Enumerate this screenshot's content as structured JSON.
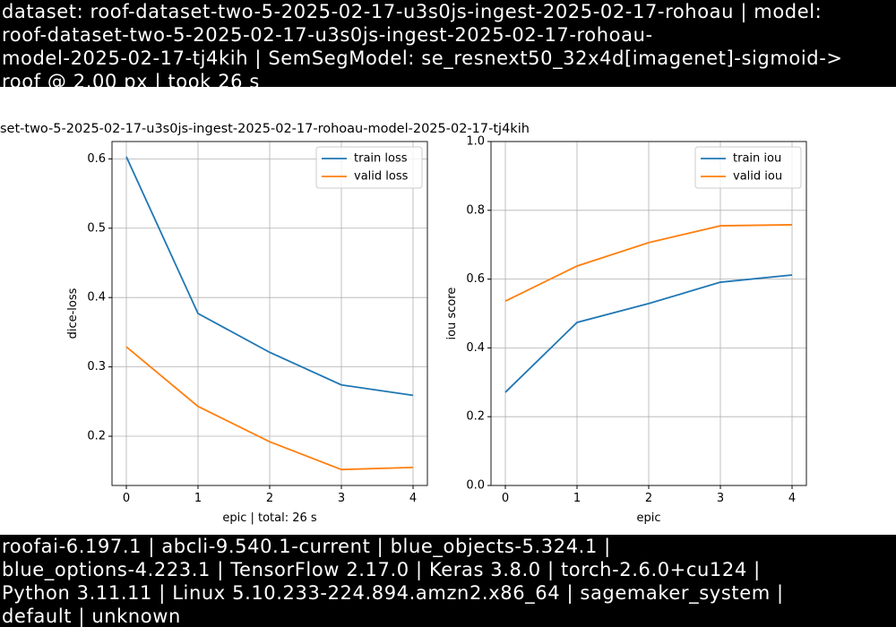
{
  "header": {
    "lines": [
      "dataset: roof-dataset-two-5-2025-02-17-u3s0js-ingest-2025-02-17-rohoau | model:",
      "roof-dataset-two-5-2025-02-17-u3s0js-ingest-2025-02-17-rohoau-",
      "model-2025-02-17-tj4kih | SemSegModel: se_resnext50_32x4d[imagenet]-sigmoid->",
      "roof @ 2.00 px | took 26 s"
    ]
  },
  "figure": {
    "title": "set-two-5-2025-02-17-u3s0js-ingest-2025-02-17-rohoau-model-2025-02-17-tj4kih"
  },
  "chart_data": [
    {
      "type": "line",
      "x": [
        0,
        1,
        2,
        3,
        4
      ],
      "xlim": [
        -0.2,
        4.2
      ],
      "xticks": [
        0,
        1,
        2,
        3,
        4
      ],
      "ylim": [
        0.129,
        0.625
      ],
      "yticks": [
        0.2,
        0.3,
        0.4,
        0.5,
        0.6
      ],
      "grid": true,
      "legend": "upper-right",
      "xlabel": "epic | total: 26 s",
      "ylabel": "dice-loss",
      "series": [
        {
          "name": "train loss",
          "color": "#1f77b4",
          "values": [
            0.603,
            0.377,
            0.321,
            0.274,
            0.259
          ]
        },
        {
          "name": "valid loss",
          "color": "#ff7f0e",
          "values": [
            0.329,
            0.243,
            0.192,
            0.152,
            0.155
          ]
        }
      ]
    },
    {
      "type": "line",
      "x": [
        0,
        1,
        2,
        3,
        4
      ],
      "xlim": [
        -0.2,
        4.2
      ],
      "xticks": [
        0,
        1,
        2,
        3,
        4
      ],
      "ylim": [
        0,
        1
      ],
      "yticks": [
        {
          "value": 0,
          "label": "0.0"
        },
        0.2,
        0.4,
        0.6,
        0.8,
        {
          "value": 1,
          "label": "1.0"
        }
      ],
      "grid": true,
      "legend": "upper-right",
      "xlabel": "epic",
      "ylabel": "iou score",
      "series": [
        {
          "name": "train iou",
          "color": "#1f77b4",
          "values": [
            0.271,
            0.474,
            0.529,
            0.591,
            0.612
          ]
        },
        {
          "name": "valid iou",
          "color": "#ff7f0e",
          "values": [
            0.536,
            0.638,
            0.706,
            0.755,
            0.758
          ]
        }
      ]
    }
  ],
  "footer": {
    "lines": [
      "roofai-6.197.1 | abcli-9.540.1-current | blue_objects-5.324.1 |",
      "blue_options-4.223.1 | TensorFlow 2.17.0 | Keras 3.8.0 | torch-2.6.0+cu124 |",
      "Python 3.11.11 | Linux 5.10.233-224.894.amzn2.x86_64 | sagemaker_system |",
      "default | unknown"
    ]
  }
}
